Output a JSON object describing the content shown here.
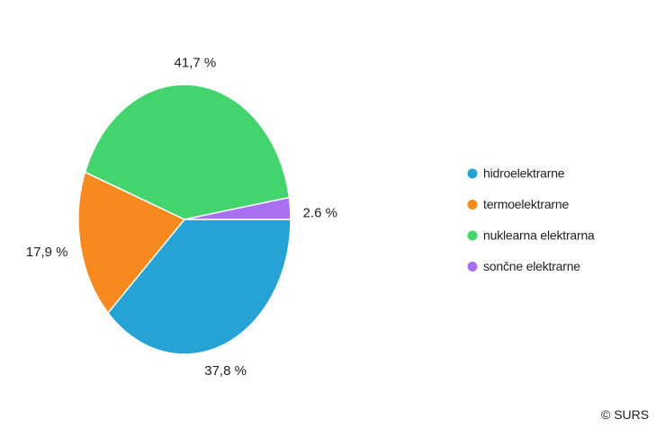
{
  "chart_data": {
    "type": "pie",
    "title": "",
    "slices": [
      {
        "label": "hidroelektrarne",
        "value": 37.8,
        "display": "37,8 %",
        "color": "#26a3d5"
      },
      {
        "label": "termoelektrarne",
        "value": 17.9,
        "display": "17,9 %",
        "color": "#f78a1f"
      },
      {
        "label": "nuklearna elektrarna",
        "value": 41.7,
        "display": "41,7 %",
        "color": "#44d46e"
      },
      {
        "label": "sončne elektrarne",
        "value": 2.6,
        "display": "2.6 %",
        "color": "#a86ff3"
      }
    ],
    "legend_position": "right"
  },
  "credit": "© SURS"
}
